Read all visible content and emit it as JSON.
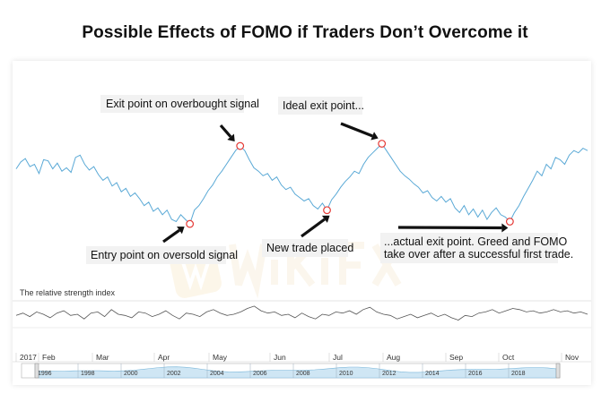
{
  "title": "Possible Effects of FOMO if Traders Don’t Overcome it",
  "chart_data": [
    {
      "type": "line",
      "series": [
        {
          "values": [
            0.62,
            0.68,
            0.71,
            0.64,
            0.66,
            0.58,
            0.7,
            0.69,
            0.62,
            0.67,
            0.6,
            0.63,
            0.59,
            0.72,
            0.74,
            0.66,
            0.61,
            0.64,
            0.57,
            0.52,
            0.55,
            0.47,
            0.5,
            0.42,
            0.45,
            0.38,
            0.41,
            0.36,
            0.3,
            0.33,
            0.25,
            0.28,
            0.22,
            0.26,
            0.18,
            0.16,
            0.22,
            0.18,
            0.14,
            0.26,
            0.3,
            0.36,
            0.43,
            0.48,
            0.55,
            0.6,
            0.66,
            0.72,
            0.78,
            0.82,
            0.78,
            0.7,
            0.63,
            0.6,
            0.56,
            0.58,
            0.52,
            0.55,
            0.48,
            0.44,
            0.46,
            0.4,
            0.37,
            0.34,
            0.36,
            0.3,
            0.27,
            0.32,
            0.26,
            0.35,
            0.4,
            0.46,
            0.51,
            0.55,
            0.6,
            0.58,
            0.66,
            0.72,
            0.76,
            0.8,
            0.84,
            0.78,
            0.72,
            0.66,
            0.6,
            0.56,
            0.53,
            0.49,
            0.46,
            0.41,
            0.43,
            0.37,
            0.34,
            0.38,
            0.33,
            0.36,
            0.28,
            0.24,
            0.3,
            0.22,
            0.27,
            0.2,
            0.26,
            0.18,
            0.24,
            0.28,
            0.22,
            0.2,
            0.16,
            0.24,
            0.3,
            0.38,
            0.45,
            0.52,
            0.6,
            0.56,
            0.66,
            0.62,
            0.72,
            0.7,
            0.66,
            0.74,
            0.78,
            0.76,
            0.8,
            0.78
          ]
        }
      ],
      "annotations": [
        {
          "label": "Exit point on overbought signal"
        },
        {
          "label": "Ideal exit point..."
        },
        {
          "label": "Entry point on oversold signal"
        },
        {
          "label": "New trade placed"
        },
        {
          "label": "...actual exit point. Greed and FOMO"
        },
        {
          "label": "take over after a successful first trade."
        }
      ]
    },
    {
      "type": "line",
      "title": "The relative strength index",
      "series": [
        {
          "values": [
            0.45,
            0.55,
            0.4,
            0.6,
            0.5,
            0.35,
            0.55,
            0.65,
            0.45,
            0.5,
            0.3,
            0.55,
            0.6,
            0.4,
            0.7,
            0.5,
            0.45,
            0.35,
            0.6,
            0.55,
            0.4,
            0.5,
            0.65,
            0.45,
            0.3,
            0.55,
            0.5,
            0.4,
            0.6,
            0.7,
            0.55,
            0.45,
            0.5,
            0.6,
            0.75,
            0.85,
            0.65,
            0.55,
            0.6,
            0.45,
            0.5,
            0.35,
            0.55,
            0.4,
            0.3,
            0.5,
            0.45,
            0.6,
            0.55,
            0.65,
            0.5,
            0.7,
            0.8,
            0.6,
            0.5,
            0.45,
            0.3,
            0.4,
            0.5,
            0.35,
            0.45,
            0.55,
            0.4,
            0.5,
            0.35,
            0.25,
            0.45,
            0.4,
            0.55,
            0.6,
            0.7,
            0.55,
            0.65,
            0.75,
            0.7,
            0.6,
            0.65,
            0.55,
            0.6,
            0.7,
            0.6,
            0.65,
            0.55,
            0.6,
            0.5
          ]
        }
      ]
    }
  ],
  "months": [
    "2017",
    "Feb",
    "Mar",
    "Apr",
    "May",
    "Jun",
    "Jul",
    "Aug",
    "Sep",
    "Oct",
    "Nov"
  ],
  "years": [
    "1996",
    "1998",
    "2000",
    "2002",
    "2004",
    "2006",
    "2008",
    "2010",
    "2012",
    "2014",
    "2016",
    "2018"
  ],
  "colors": {
    "price": "#5aa9d6",
    "rsi": "#555555",
    "marker": "#e53935",
    "arrow": "#111111",
    "navigator": "#cfe6f4"
  }
}
